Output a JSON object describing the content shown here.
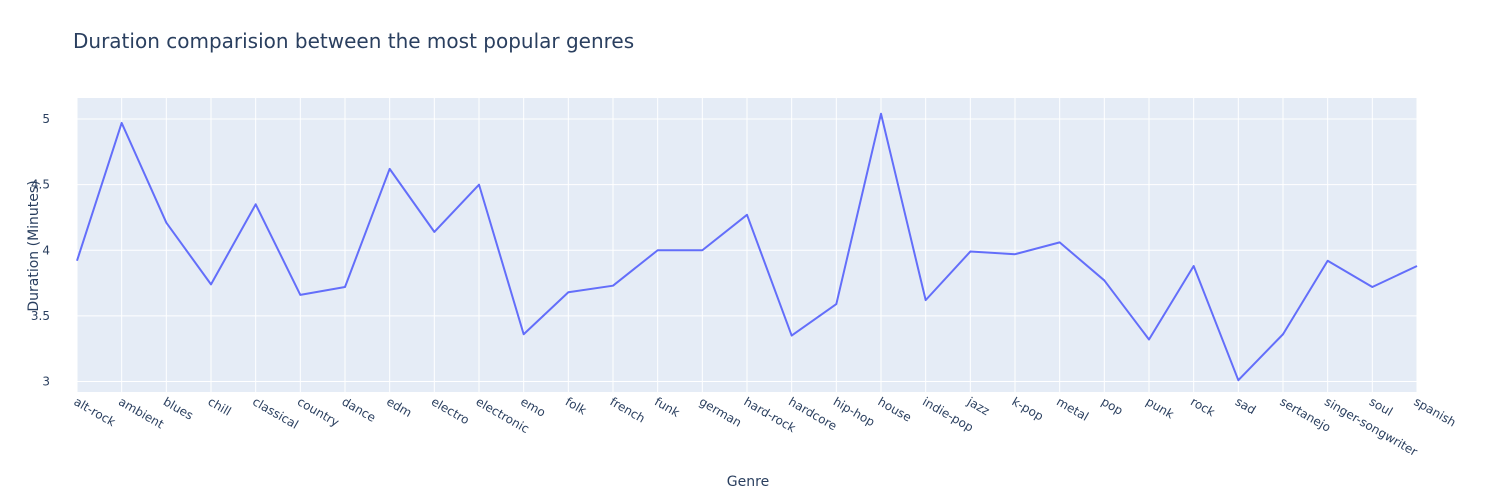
{
  "chart_data": {
    "type": "line",
    "title": "Duration comparision between the most popular genres",
    "xlabel": "Genre",
    "ylabel": "Duration (Minutes)",
    "ylim": [
      2.92,
      5.16
    ],
    "yticks": [
      3,
      3.5,
      4,
      4.5,
      5
    ],
    "grid": true,
    "colors": {
      "line": "#636efa",
      "plot_bg": "#e5ecf6",
      "grid": "#ffffff",
      "text": "#2a3f5f"
    },
    "categories": [
      "alt-rock",
      "ambient",
      "blues",
      "chill",
      "classical",
      "country",
      "dance",
      "edm",
      "electro",
      "electronic",
      "emo",
      "folk",
      "french",
      "funk",
      "german",
      "hard-rock",
      "hardcore",
      "hip-hop",
      "house",
      "indie-pop",
      "jazz",
      "k-pop",
      "metal",
      "pop",
      "punk",
      "rock",
      "sad",
      "sertanejo",
      "singer-songwriter",
      "soul",
      "spanish"
    ],
    "values": [
      3.92,
      4.97,
      4.21,
      3.74,
      4.35,
      3.66,
      3.72,
      4.62,
      4.14,
      4.5,
      3.36,
      3.68,
      3.73,
      4.0,
      4.0,
      4.27,
      3.35,
      3.59,
      5.04,
      3.62,
      3.99,
      3.97,
      4.06,
      3.77,
      3.32,
      3.88,
      3.01,
      3.36,
      3.92,
      3.72,
      3.88
    ]
  }
}
